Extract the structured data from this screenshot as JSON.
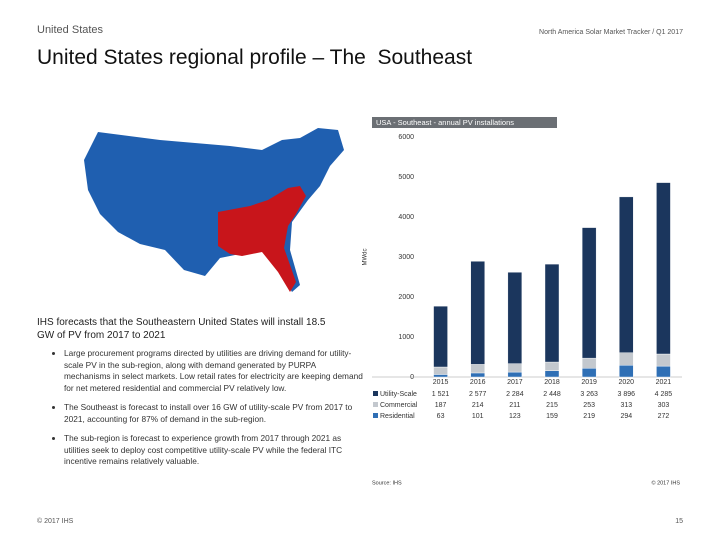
{
  "header": {
    "section": "United States",
    "report": "North America Solar Market Tracker / Q1 2017",
    "title": "United States regional profile – The  Southeast"
  },
  "body": {
    "heading": "IHS forecasts that the Southeastern United States will install 18.5 GW of PV from 2017 to 2021",
    "bullets": [
      "Large procurement programs directed by utilities are driving demand for utility-scale PV in the sub-region, along with demand generated by PURPA mechanisms in select markets. Low retail rates for electricity are keeping demand for net metered residential and commercial PV relatively low.",
      "The Southeast is forecast to install over 16 GW of utility-scale PV from 2017 to 2021, accounting for 87% of demand in the sub-region.",
      "The sub-region is forecast to experience growth from 2017 through 2021 as utilities seek to deploy cost competitive utility-scale PV while the federal ITC incentive remains relatively valuable."
    ]
  },
  "footer": {
    "copyright": "© 2017 IHS",
    "page": "15"
  },
  "chart_data": {
    "type": "stacked-bar",
    "title": "USA - Southeast - annual PV installations",
    "y_label": "MWdc",
    "source": "Source: IHS",
    "copyright": "© 2017 IHS",
    "grid": false,
    "categories": [
      "2015",
      "2016",
      "2017",
      "2018",
      "2019",
      "2020",
      "2021"
    ],
    "series": [
      {
        "name": "Utility-Scale",
        "color": "#1b365d",
        "values": [
          1521,
          2577,
          2284,
          2448,
          3263,
          3896,
          4285
        ],
        "value_labels": [
          "1 521",
          "2 577",
          "2 284",
          "2 448",
          "3 263",
          "3 896",
          "4 285"
        ]
      },
      {
        "name": "Commercial",
        "color": "#c3c8ce",
        "values": [
          187,
          214,
          211,
          215,
          253,
          313,
          303
        ]
      },
      {
        "name": "Residential",
        "color": "#2f6fb5",
        "values": [
          63,
          101,
          123,
          159,
          219,
          294,
          272
        ]
      }
    ],
    "ylim": [
      0,
      6000
    ],
    "yticks": [
      0,
      1000,
      2000,
      3000,
      4000,
      5000,
      6000
    ]
  }
}
